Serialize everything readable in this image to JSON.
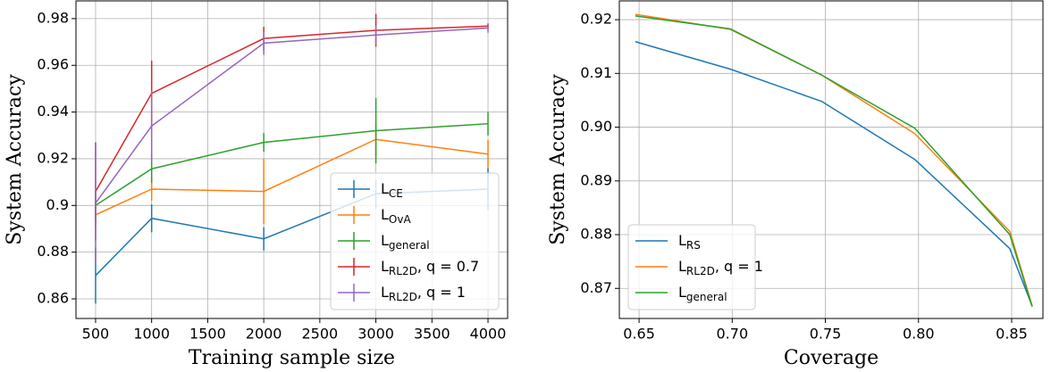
{
  "chart_data": [
    {
      "type": "line",
      "xlabel": "Training sample size",
      "ylabel": "System Accuracy",
      "x": [
        500,
        1000,
        2000,
        3000,
        4000
      ],
      "xlim": [
        325,
        4175
      ],
      "xticks": [
        500,
        1000,
        1500,
        2000,
        2500,
        3000,
        3500,
        4000
      ],
      "ylim": [
        0.8516,
        0.9876
      ],
      "yticks": [
        0.86,
        0.88,
        0.9,
        0.92,
        0.94,
        0.96,
        0.98
      ],
      "grid": true,
      "legend": "lower right",
      "series": [
        {
          "name": "L",
          "name_sub": "CE",
          "color": "#1f77b4",
          "values": [
            0.87,
            0.8945,
            0.8857,
            0.905,
            0.907
          ],
          "errors": [
            0.012,
            0.006,
            0.005,
            0.006,
            0.009
          ]
        },
        {
          "name": "L",
          "name_sub": "OvA",
          "color": "#ff7f0e",
          "values": [
            0.896,
            0.907,
            0.906,
            0.9283,
            0.922
          ],
          "errors": [
            0.005,
            0.005,
            0.014,
            0.007,
            0.006
          ]
        },
        {
          "name": "L",
          "name_sub": "general",
          "color": "#2ca02c",
          "values": [
            0.9,
            0.9157,
            0.927,
            0.932,
            0.935
          ],
          "errors": [
            0.006,
            0.006,
            0.004,
            0.014,
            0.005
          ]
        },
        {
          "name": "L",
          "name_sub": "RL2D",
          "name_suffix": ", q = 0.7",
          "color": "#d62728",
          "values": [
            0.906,
            0.948,
            0.9715,
            0.975,
            0.9768
          ],
          "errors": [
            0.021,
            0.014,
            0.005,
            0.007,
            0.001
          ]
        },
        {
          "name": "L",
          "name_sub": "RL2D",
          "name_suffix": ", q = 1",
          "color": "#9467bd",
          "values": [
            0.901,
            0.934,
            0.9695,
            0.973,
            0.976
          ],
          "errors": [
            0.026,
            0.015,
            0.005,
            0.004,
            0.002
          ]
        }
      ]
    },
    {
      "type": "line",
      "xlabel": "Coverage",
      "ylabel": "System Accuracy",
      "x": [
        0.648,
        0.699,
        0.748,
        0.798,
        0.849,
        0.861
      ],
      "xlim": [
        0.6394,
        0.8668
      ],
      "xticks": [
        {
          "value": 0.65,
          "label": "0.65"
        },
        {
          "value": 0.7,
          "label": "0.70"
        },
        {
          "value": 0.75,
          "label": "0.75"
        },
        {
          "value": 0.8,
          "label": "0.80"
        },
        {
          "value": 0.85,
          "label": "0.85"
        }
      ],
      "ylim": [
        0.8644,
        0.9235
      ],
      "yticks": [
        0.87,
        0.88,
        0.89,
        {
          "value": 0.9,
          "label": "0.90"
        },
        0.91,
        0.92
      ],
      "grid": true,
      "legend": "lower left",
      "series": [
        {
          "name": "L",
          "name_sub": "RS",
          "color": "#1f77b4",
          "values": [
            0.9159,
            0.9108,
            0.9048,
            0.894,
            0.8774,
            0.8667
          ]
        },
        {
          "name": "L",
          "name_sub": "RL2D",
          "name_suffix": ", q = 1",
          "color": "#ff7f0e",
          "values": [
            0.921,
            0.9182,
            0.9097,
            0.8988,
            0.8806,
            0.8668
          ]
        },
        {
          "name": "L",
          "name_sub": "general",
          "color": "#2ca02c",
          "values": [
            0.9207,
            0.9183,
            0.9097,
            0.8998,
            0.88,
            0.8666
          ]
        }
      ]
    }
  ]
}
